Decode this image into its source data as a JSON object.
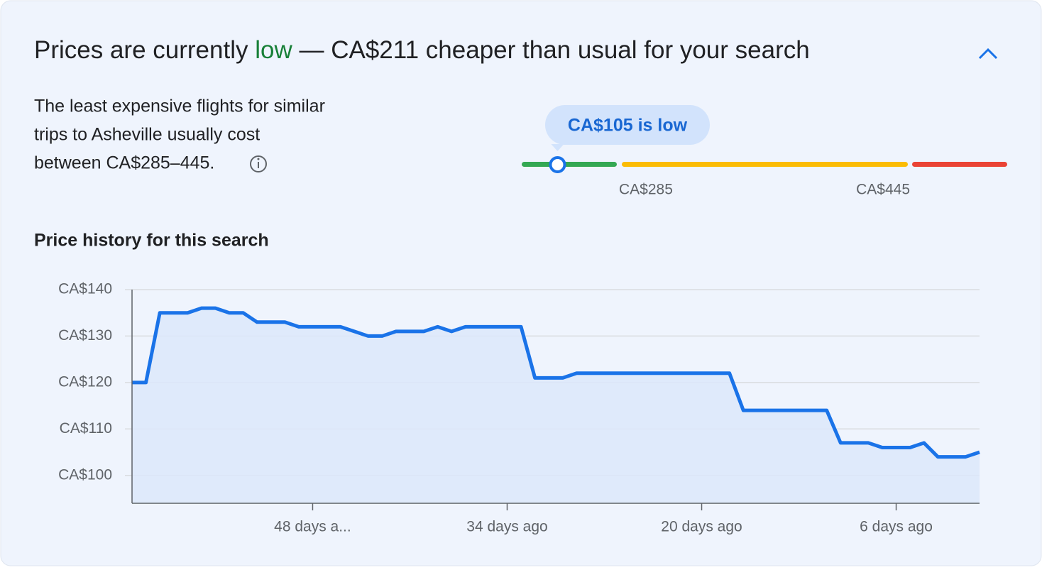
{
  "header": {
    "title_parts": [
      "Prices are currently ",
      "low",
      " — CA$211 cheaper than usual for your search"
    ]
  },
  "description": [
    "The least expensive flights for similar",
    "trips to Asheville usually cost",
    "between CA$285–445."
  ],
  "gauge": {
    "value": 105,
    "bubble": "CA$105 is low",
    "low": 285,
    "high": 445,
    "low_label": "CA$285",
    "high_label": "CA$445"
  },
  "chart_data": {
    "type": "line",
    "title": "Price history for this search",
    "x": [
      -61,
      -60,
      -59,
      -58,
      -57,
      -56,
      -55,
      -54,
      -53,
      -52,
      -51,
      -50,
      -49,
      -48,
      -47,
      -46,
      -45,
      -44,
      -43,
      -42,
      -41,
      -40,
      -39,
      -38,
      -37,
      -36,
      -35,
      -34,
      -33,
      -32,
      -31,
      -30,
      -29,
      -28,
      -27,
      -26,
      -25,
      -24,
      -23,
      -22,
      -21,
      -20,
      -19,
      -18,
      -17,
      -16,
      -15,
      -14,
      -13,
      -12,
      -11,
      -10,
      -9,
      -8,
      -7,
      -6,
      -5,
      -4,
      -3,
      -2,
      -1,
      0
    ],
    "series": [
      {
        "name": "Price",
        "color": "#1a73e8",
        "values": [
          120,
          120,
          135,
          135,
          135,
          136,
          136,
          135,
          135,
          133,
          133,
          133,
          132,
          132,
          132,
          132,
          131,
          130,
          130,
          131,
          131,
          131,
          132,
          131,
          132,
          132,
          132,
          132,
          132,
          121,
          121,
          121,
          122,
          122,
          122,
          122,
          122,
          122,
          122,
          122,
          122,
          122,
          122,
          122,
          114,
          114,
          114,
          114,
          114,
          114,
          114,
          107,
          107,
          107,
          106,
          106,
          106,
          107,
          104,
          104,
          104,
          105
        ]
      }
    ],
    "xlim": [
      -61,
      0
    ],
    "xticks": [
      {
        "value": -48,
        "label": "48 days a..."
      },
      {
        "value": -34,
        "label": "34 days ago"
      },
      {
        "value": -20,
        "label": "20 days ago"
      },
      {
        "value": -6,
        "label": "6 days ago"
      }
    ],
    "ylim": [
      94,
      140
    ],
    "yticks": [
      {
        "value": 100,
        "label": "CA$100"
      },
      {
        "value": 110,
        "label": "CA$110"
      },
      {
        "value": 120,
        "label": "CA$120"
      },
      {
        "value": 130,
        "label": "CA$130"
      },
      {
        "value": 140,
        "label": "CA$140"
      }
    ],
    "grid": true
  }
}
